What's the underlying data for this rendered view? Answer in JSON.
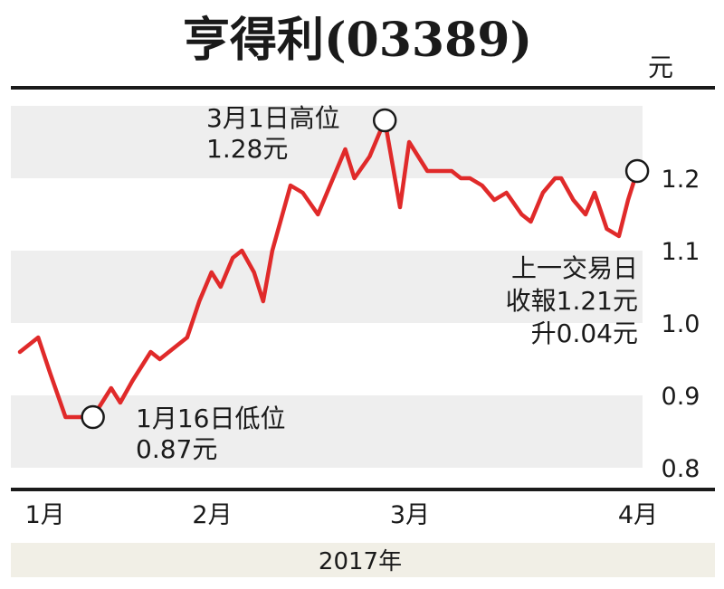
{
  "chart_data": {
    "type": "line",
    "title": "亨得利(03389)",
    "unit_label": "元",
    "year_label": "2017年",
    "ylim": [
      0.8,
      1.3
    ],
    "y_ticks": [
      "0.8",
      "0.9",
      "1.0",
      "1.1",
      "1.2"
    ],
    "x_ticks": [
      {
        "label": "1月",
        "x": 0.4
      },
      {
        "label": "2月",
        "x": 11.4
      },
      {
        "label": "3月",
        "x": 24.4
      },
      {
        "label": "4月",
        "x": 39.4
      }
    ],
    "grid": "horizontal-bands",
    "series": [
      {
        "color": "#e02a2a",
        "points": [
          [
            0,
            0.96
          ],
          [
            1.2,
            0.98
          ],
          [
            2,
            0.93
          ],
          [
            3,
            0.87
          ],
          [
            4,
            0.87
          ],
          [
            4.8,
            0.87
          ],
          [
            6,
            0.91
          ],
          [
            6.6,
            0.89
          ],
          [
            7.4,
            0.92
          ],
          [
            8.6,
            0.96
          ],
          [
            9.2,
            0.95
          ],
          [
            10.4,
            0.97
          ],
          [
            11,
            0.98
          ],
          [
            11.8,
            1.03
          ],
          [
            12.6,
            1.07
          ],
          [
            13.2,
            1.05
          ],
          [
            14,
            1.09
          ],
          [
            14.6,
            1.1
          ],
          [
            15.4,
            1.07
          ],
          [
            16,
            1.03
          ],
          [
            16.6,
            1.1
          ],
          [
            17.8,
            1.19
          ],
          [
            18.6,
            1.18
          ],
          [
            19.6,
            1.15
          ],
          [
            20.4,
            1.19
          ],
          [
            21.4,
            1.24
          ],
          [
            22,
            1.2
          ],
          [
            23,
            1.23
          ],
          [
            24,
            1.28
          ],
          [
            25,
            1.16
          ],
          [
            25.6,
            1.25
          ],
          [
            26.8,
            1.21
          ],
          [
            27.6,
            1.21
          ],
          [
            28.4,
            1.21
          ],
          [
            29,
            1.2
          ],
          [
            29.6,
            1.2
          ],
          [
            30.4,
            1.19
          ],
          [
            31.2,
            1.17
          ],
          [
            32,
            1.18
          ],
          [
            33,
            1.15
          ],
          [
            33.6,
            1.14
          ],
          [
            34.4,
            1.18
          ],
          [
            35.2,
            1.2
          ],
          [
            35.6,
            1.2
          ],
          [
            36.4,
            1.17
          ],
          [
            37.2,
            1.15
          ],
          [
            37.8,
            1.18
          ],
          [
            38.6,
            1.13
          ],
          [
            39.4,
            1.12
          ],
          [
            40,
            1.17
          ],
          [
            40.6,
            1.21
          ]
        ]
      }
    ],
    "annotations": [
      {
        "text_lines": [
          "3月1日高位",
          "1.28元"
        ],
        "x": 24,
        "y": 1.28
      },
      {
        "text_lines": [
          "1月16日低位",
          "0.87元"
        ],
        "x": 4.8,
        "y": 0.87
      },
      {
        "text_lines": [
          "上一交易日",
          "收報1.21元",
          "升0.04元"
        ],
        "x": 40.6,
        "y": 1.21
      }
    ]
  }
}
